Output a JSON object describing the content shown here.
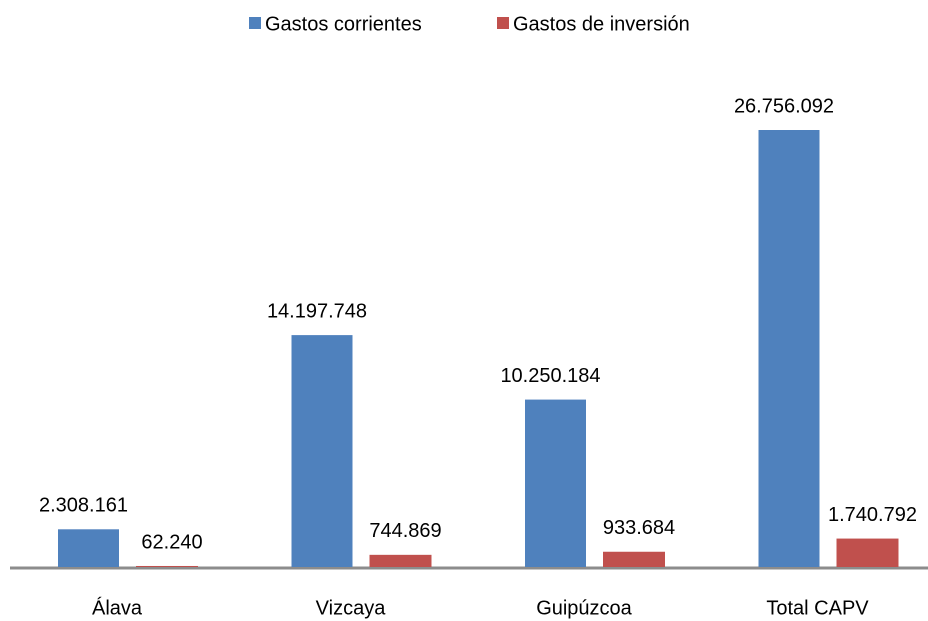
{
  "chart_data": {
    "type": "bar",
    "categories": [
      "Álava",
      "Vizcaya",
      "Guipúzcoa",
      "Total CAPV"
    ],
    "series": [
      {
        "name": "Gastos corrientes",
        "color": "#4f81bd",
        "values": [
          2308161,
          14197748,
          10250184,
          26756092
        ],
        "value_labels": [
          "2.308.161",
          "14.197.748",
          "10.250.184",
          "26.756.092"
        ]
      },
      {
        "name": "Gastos de inversión",
        "color": "#c0504d",
        "values": [
          62240,
          744869,
          933684,
          1740792
        ],
        "value_labels": [
          "62.240",
          "744.869",
          "933.684",
          "1.740.792"
        ]
      }
    ],
    "legend": "top"
  }
}
